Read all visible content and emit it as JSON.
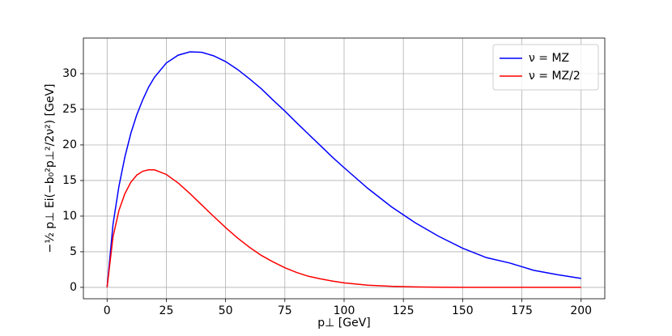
{
  "chart_data": {
    "type": "line",
    "x_label": "p⊥ [GeV]",
    "y_label": "−½ p⊥ Ei(−b₀²p⊥²/2ν²) [GeV]",
    "x": [
      0,
      2.5,
      5,
      7.5,
      10,
      12.5,
      15,
      17.5,
      20,
      25,
      30,
      35,
      40,
      45,
      50,
      55,
      60,
      65,
      70,
      75,
      80,
      85,
      90,
      95,
      100,
      110,
      120,
      130,
      140,
      150,
      160,
      170,
      180,
      190,
      200
    ],
    "series": [
      {
        "name": "ν = MZ",
        "color": "#0000ff",
        "values": [
          0,
          8.85,
          14.2,
          18.3,
          21.6,
          24.2,
          26.3,
          28.1,
          29.5,
          31.5,
          32.6,
          33.07,
          33.0,
          32.5,
          31.7,
          30.6,
          29.3,
          27.9,
          26.3,
          24.75,
          23.1,
          21.5,
          19.9,
          18.3,
          16.8,
          13.9,
          11.3,
          9.07,
          7.15,
          5.5,
          4.18,
          3.41,
          2.39,
          1.78,
          1.26
        ]
      },
      {
        "name": "ν = MZ/2",
        "color": "#ff0000",
        "values": [
          0,
          7.1,
          10.8,
          13.15,
          14.75,
          15.75,
          16.3,
          16.5,
          16.5,
          15.85,
          14.65,
          13.15,
          11.55,
          9.95,
          8.4,
          6.95,
          5.65,
          4.5,
          3.58,
          2.75,
          2.09,
          1.55,
          1.195,
          0.89,
          0.63,
          0.31,
          0.146,
          0.065,
          0.027,
          0.011,
          0.004,
          0.0016,
          0.0006,
          0.0002,
          0.0001
        ]
      }
    ],
    "xlim": [
      -10,
      210
    ],
    "ylim": [
      -1.6,
      35
    ],
    "xticks": [
      0,
      25,
      50,
      75,
      100,
      125,
      150,
      175,
      200
    ],
    "yticks": [
      0,
      5,
      10,
      15,
      20,
      25,
      30
    ],
    "grid": true,
    "legend": "upper right"
  }
}
